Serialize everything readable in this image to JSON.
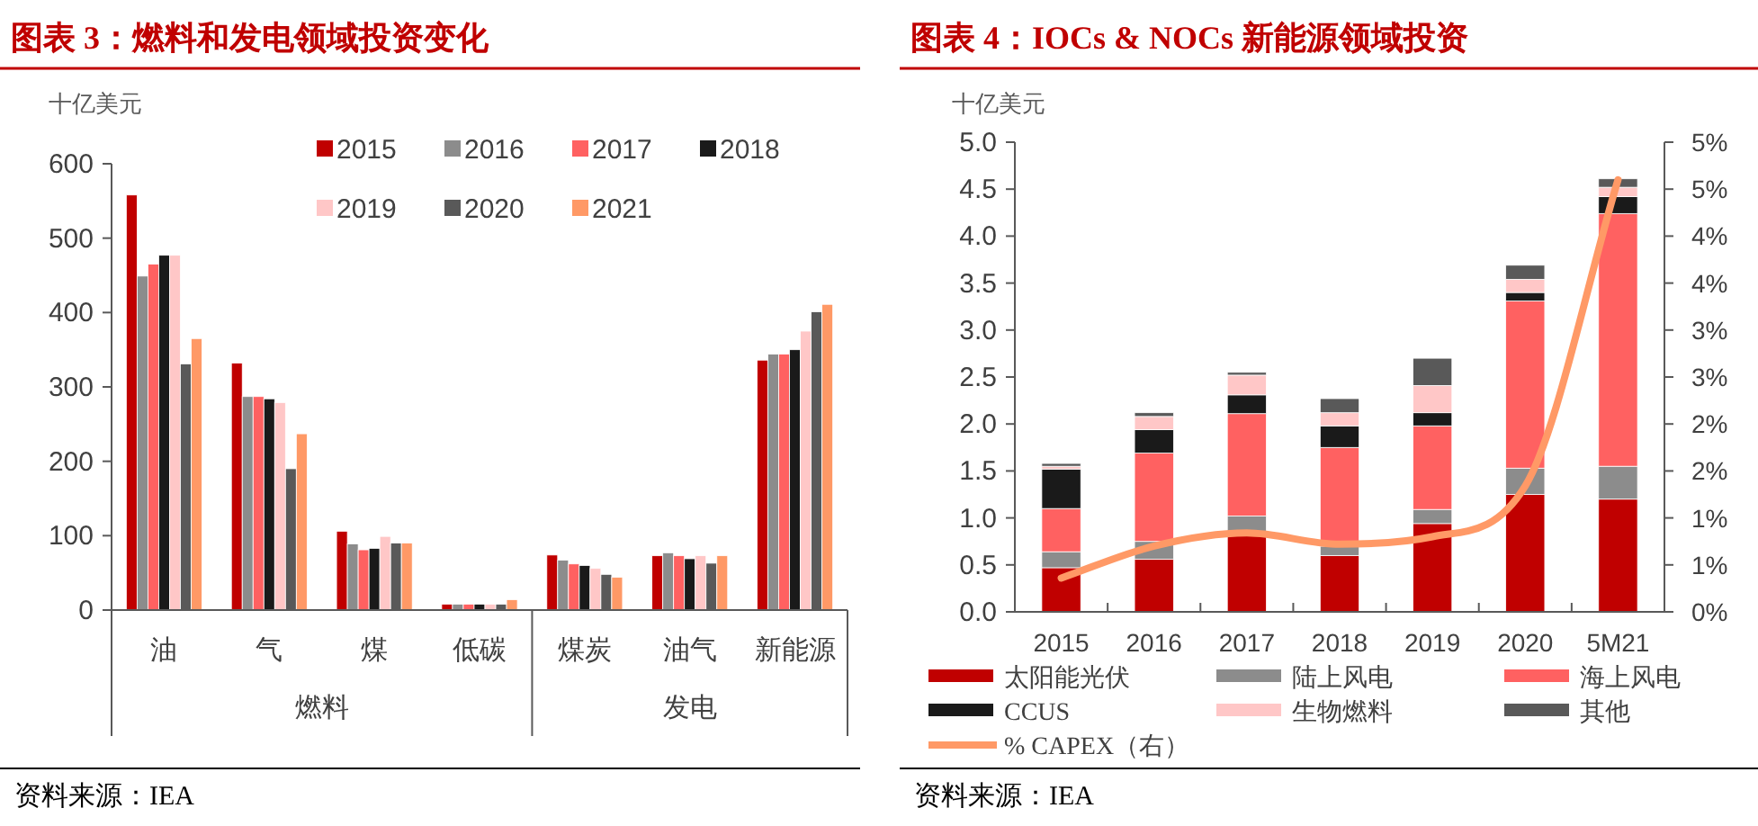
{
  "chart_data": [
    {
      "type": "bar",
      "title": "图表 3：燃料和发电领域投资变化",
      "ylabel": "十亿美元",
      "categories": [
        "油",
        "气",
        "煤",
        "低碳",
        "煤炭",
        "油气",
        "新能源"
      ],
      "series": [
        {
          "name": "2015",
          "color": "#c00000",
          "values": [
            558,
            332,
            106,
            8,
            74,
            73,
            336
          ]
        },
        {
          "name": "2016",
          "color": "#8c8c8c",
          "values": [
            449,
            287,
            89,
            8,
            67,
            77,
            344
          ]
        },
        {
          "name": "2017",
          "color": "#ff6161",
          "values": [
            465,
            287,
            81,
            8,
            62,
            73,
            344
          ]
        },
        {
          "name": "2018",
          "color": "#1a1a1a",
          "values": [
            477,
            284,
            83,
            8,
            60,
            69,
            350
          ]
        },
        {
          "name": "2019",
          "color": "#ffc7c7",
          "values": [
            477,
            279,
            99,
            8,
            56,
            73,
            375
          ]
        },
        {
          "name": "2020",
          "color": "#595959",
          "values": [
            331,
            190,
            90,
            8,
            48,
            63,
            401
          ]
        },
        {
          "name": "2021",
          "color": "#ff9966",
          "values": [
            365,
            237,
            90,
            14,
            44,
            73,
            411
          ]
        }
      ],
      "ylim": [
        0,
        600
      ],
      "yticks": [
        0,
        100,
        200,
        300,
        400,
        500,
        600
      ],
      "legend": "top",
      "annotations": [
        "燃料",
        "发电",
        "资料来源：IEA"
      ]
    },
    {
      "type": "bar",
      "title": "图表 4：IOCs & NOCs 新能源领域投资",
      "ylabel": "十亿美元",
      "categories": [
        "2015",
        "2016",
        "2017",
        "2018",
        "2019",
        "2020",
        "5M21"
      ],
      "stacked": true,
      "series": [
        {
          "name": "太阳能光伏",
          "color": "#c00000",
          "values": [
            0.47,
            0.56,
            0.83,
            0.6,
            0.94,
            1.25,
            1.2
          ]
        },
        {
          "name": "陆上风电",
          "color": "#8c8c8c",
          "values": [
            0.17,
            0.19,
            0.19,
            0.1,
            0.15,
            0.28,
            0.35
          ]
        },
        {
          "name": "海上风电",
          "color": "#ff6161",
          "values": [
            0.46,
            0.94,
            1.09,
            1.05,
            0.89,
            1.78,
            2.69
          ]
        },
        {
          "name": "CCUS",
          "color": "#1a1a1a",
          "values": [
            0.42,
            0.25,
            0.2,
            0.23,
            0.14,
            0.09,
            0.18
          ]
        },
        {
          "name": "生物燃料",
          "color": "#ffc7c7",
          "values": [
            0.03,
            0.14,
            0.21,
            0.14,
            0.29,
            0.14,
            0.1
          ]
        },
        {
          "name": "其他",
          "color": "#595959",
          "values": [
            0.03,
            0.04,
            0.03,
            0.15,
            0.29,
            0.15,
            0.09
          ]
        },
        {
          "name": "% CAPEX（右）",
          "type": "line",
          "axis": "y2",
          "color": "#ff9966",
          "values": [
            0.36,
            0.7,
            0.84,
            0.72,
            0.8,
            1.34,
            4.6
          ]
        }
      ],
      "ylim": [
        0,
        5
      ],
      "yticks": [
        {
          "value": 0,
          "label": "0.0"
        },
        {
          "value": 0.5,
          "label": "0.5"
        },
        {
          "value": 1,
          "label": "1.0"
        },
        {
          "value": 1.5,
          "label": "1.5"
        },
        {
          "value": 2,
          "label": "2.0"
        },
        {
          "value": 2.5,
          "label": "2.5"
        },
        {
          "value": 3,
          "label": "3.0"
        },
        {
          "value": 3.5,
          "label": "3.5"
        },
        {
          "value": 4,
          "label": "4.0"
        },
        {
          "value": 4.5,
          "label": "4.5"
        },
        {
          "value": 5,
          "label": "5.0"
        }
      ],
      "y2lim": [
        0,
        5
      ],
      "y2ticks": [
        {
          "value": 0,
          "label": "0%"
        },
        {
          "value": 0.5,
          "label": "1%"
        },
        {
          "value": 1,
          "label": "1%"
        },
        {
          "value": 1.5,
          "label": "2%"
        },
        {
          "value": 2,
          "label": "2%"
        },
        {
          "value": 2.5,
          "label": "3%"
        },
        {
          "value": 3,
          "label": "3%"
        },
        {
          "value": 3.5,
          "label": "4%"
        },
        {
          "value": 4,
          "label": "4%"
        },
        {
          "value": 4.5,
          "label": "5%"
        },
        {
          "value": 5,
          "label": "5%"
        }
      ],
      "legend": "bottom",
      "annotations": [
        "资料来源：IEA"
      ]
    }
  ]
}
